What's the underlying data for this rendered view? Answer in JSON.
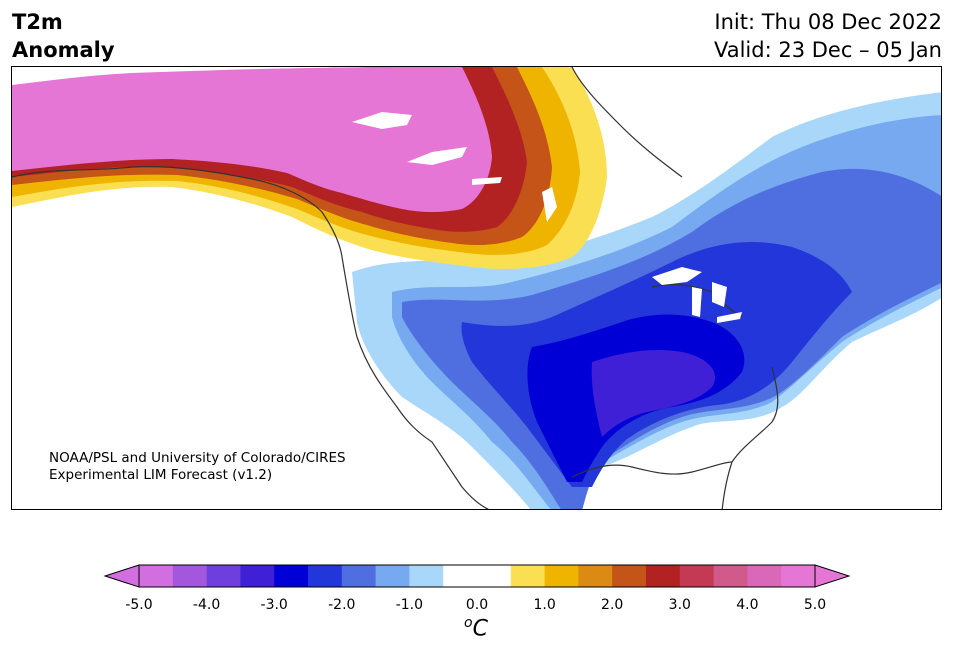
{
  "header": {
    "title_line1": "T2m",
    "title_line2": "Anomaly",
    "init_text": "Init: Thu 08 Dec 2022",
    "valid_text": "Valid: 23 Dec – 05 Jan"
  },
  "credit": {
    "line1": "NOAA/PSL and University of Colorado/CIRES",
    "line2": "Experimental LIM Forecast (v1.2)"
  },
  "colorbar": {
    "colors": [
      "#d36ee0",
      "#a257dd",
      "#6e3fdc",
      "#3f20d6",
      "#0000d6",
      "#2336d9",
      "#4f6fe0",
      "#76a9ef",
      "#a9d7f9",
      "#ffffff",
      "#ffffff",
      "#fbdf52",
      "#efb400",
      "#db8a13",
      "#c45417",
      "#b22222",
      "#c43a54",
      "#d05a8a",
      "#da68b8",
      "#e676d6"
    ],
    "over_color": "#e676d6",
    "under_color": "#d36ee0",
    "tick_labels": [
      "-5.0",
      "-4.0",
      "-3.0",
      "-2.0",
      "-1.0",
      "0.0",
      "1.0",
      "2.0",
      "3.0",
      "4.0",
      "5.0"
    ],
    "unit_base": "C",
    "unit_sup": "o"
  },
  "colors": {
    "warm_extreme": "#e676d6",
    "warm_high": "#b22222",
    "warm_mid": "#db8a13",
    "warm_low": "#fbdf52",
    "cold_light": "#a9d7f9",
    "cold_mid": "#4f6fe0",
    "cold_strong": "#0000d6",
    "cold_core": "#3f20d6",
    "coast": "#333333"
  }
}
